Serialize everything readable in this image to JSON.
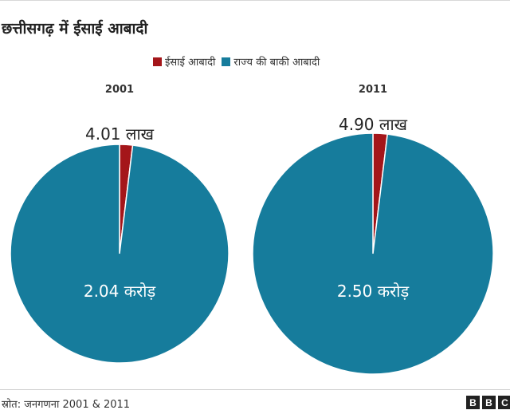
{
  "title": "छत्तीसगढ़ में ईसाई आबादी",
  "source": "स्रोत: जनगणना 2001 & 2011",
  "logo": [
    "B",
    "B",
    "C"
  ],
  "colors": {
    "christian": "#a4161a",
    "rest": "#167c9c"
  },
  "chart_data": [
    {
      "type": "pie",
      "title": "2001",
      "legend_position": "top",
      "slices": [
        {
          "name": "ईसाई आबादी",
          "value": 401000,
          "label": "4.01 लाख",
          "color": "#a4161a"
        },
        {
          "name": "राज्य की बाकी आबादी",
          "value": 20400000,
          "label": "2.04 करोड़",
          "color": "#167c9c"
        }
      ]
    },
    {
      "type": "pie",
      "title": "2011",
      "legend_position": "top",
      "slices": [
        {
          "name": "ईसाई आबादी",
          "value": 490000,
          "label": "4.90 लाख",
          "color": "#a4161a"
        },
        {
          "name": "राज्य की बाकी आबादी",
          "value": 25000000,
          "label": "2.50 करोड़",
          "color": "#167c9c"
        }
      ]
    }
  ]
}
